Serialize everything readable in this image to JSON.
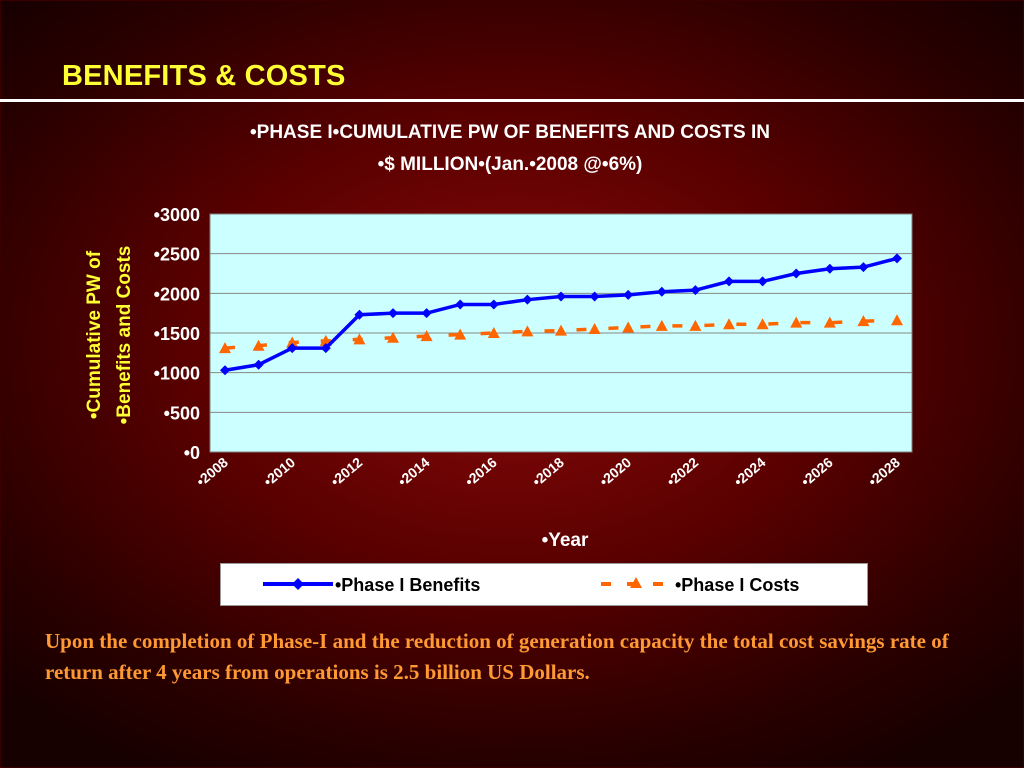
{
  "slide": {
    "title": "BENEFITS & COSTS",
    "caption": "Upon the completion of Phase-I and the reduction of generation capacity the total cost savings rate of return after 4 years from operations is 2.5 billion US Dollars."
  },
  "colors": {
    "title_text": "#ffff33",
    "caption_text": "#ff9933",
    "plot_background": "#ccffff",
    "benefits_line": "#0000ff",
    "costs_line": "#ff6600"
  },
  "chart_data": {
    "type": "line",
    "title_line1": "•PHASE I•CUMULATIVE PW OF BENEFITS AND COSTS IN",
    "title_line2": "•$ MILLION•(Jan.•2008 @•6%)",
    "ylabel_line1": "•Cumulative PW of",
    "ylabel_line2": "•Benefits and Costs",
    "xlabel": "•Year",
    "ylim": [
      0,
      3000
    ],
    "yticks": [
      0,
      500,
      1000,
      1500,
      2000,
      2500,
      3000
    ],
    "ytick_labels": [
      "•0",
      "•500",
      "•1000",
      "•1500",
      "•2000",
      "•2500",
      "•3000"
    ],
    "x": [
      2008,
      2009,
      2010,
      2011,
      2012,
      2013,
      2014,
      2015,
      2016,
      2017,
      2018,
      2019,
      2020,
      2021,
      2022,
      2023,
      2024,
      2025,
      2026,
      2027,
      2028
    ],
    "xtick_labels": [
      "•2008",
      "•2010",
      "•2012",
      "•2014",
      "•2016",
      "•2018",
      "•2020",
      "•2022",
      "•2024",
      "•2026",
      "•2028"
    ],
    "xtick_values": [
      2008,
      2010,
      2012,
      2014,
      2016,
      2018,
      2020,
      2022,
      2024,
      2026,
      2028
    ],
    "grid": true,
    "legend_position": "bottom",
    "series": [
      {
        "name": "•Phase I Benefits",
        "style": "solid",
        "marker": "diamond",
        "values": [
          1030,
          1100,
          1310,
          1310,
          1730,
          1750,
          1750,
          1860,
          1860,
          1920,
          1960,
          1960,
          1980,
          2020,
          2040,
          2150,
          2150,
          2250,
          2310,
          2330,
          2440
        ]
      },
      {
        "name": "•Phase I Costs",
        "style": "dashed",
        "marker": "triangle",
        "values": [
          1310,
          1340,
          1380,
          1400,
          1420,
          1440,
          1460,
          1480,
          1500,
          1520,
          1530,
          1550,
          1570,
          1590,
          1590,
          1610,
          1610,
          1630,
          1630,
          1650,
          1660
        ]
      }
    ]
  }
}
